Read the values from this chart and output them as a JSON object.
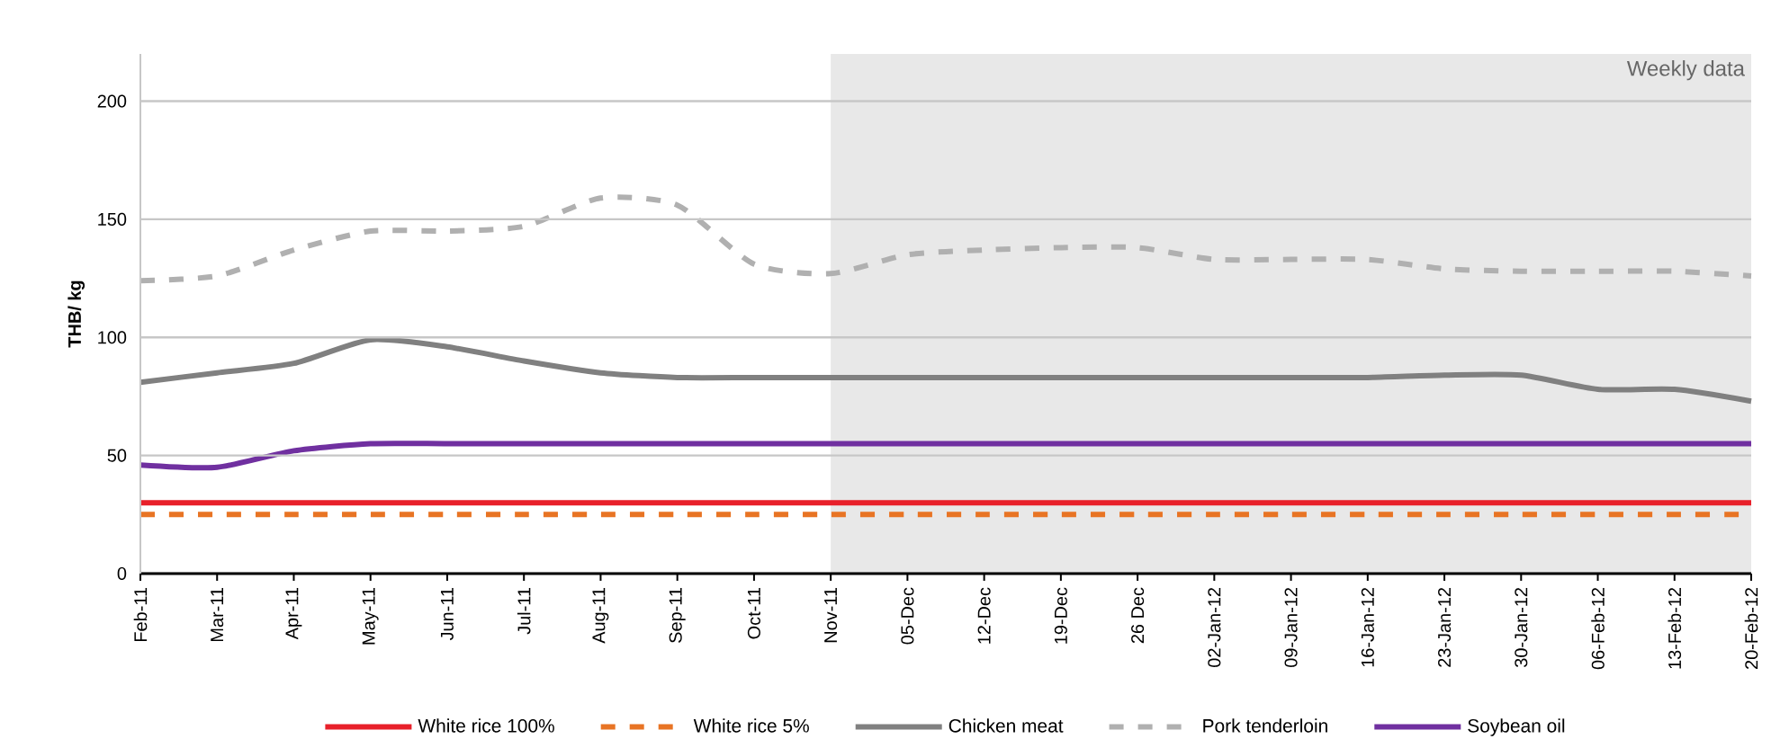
{
  "chart_data": {
    "type": "line",
    "ylabel": "THB/ kg",
    "categories": [
      "Feb-11",
      "Mar-11",
      "Apr-11",
      "May-11",
      "Jun-11",
      "Jul-11",
      "Aug-11",
      "Sep-11",
      "Oct-11",
      "Nov-11",
      "05-Dec",
      "12-Dec",
      "19-Dec",
      "26 Dec",
      "02-Jan-12",
      "09-Jan-12",
      "16-Jan-12",
      "23-Jan-12",
      "30-Jan-12",
      "06-Feb-12",
      "13-Feb-12",
      "20-Feb-12"
    ],
    "series": [
      {
        "name": "White rice 100%",
        "color": "#e8202a",
        "line_style": "solid",
        "values": [
          30,
          30,
          30,
          30,
          30,
          30,
          30,
          30,
          30,
          30,
          30,
          30,
          30,
          30,
          30,
          30,
          30,
          30,
          30,
          30,
          30,
          30
        ]
      },
      {
        "name": "White rice 5%",
        "color": "#e87424",
        "line_style": "dashed",
        "values": [
          25,
          25,
          25,
          25,
          25,
          25,
          25,
          25,
          25,
          25,
          25,
          25,
          25,
          25,
          25,
          25,
          25,
          25,
          25,
          25,
          25,
          25
        ]
      },
      {
        "name": "Chicken meat",
        "color": "#808080",
        "line_style": "solid",
        "values": [
          81,
          85,
          89,
          99,
          96,
          90,
          85,
          83,
          83,
          83,
          83,
          83,
          83,
          83,
          83,
          83,
          83,
          84,
          84,
          78,
          78,
          73
        ]
      },
      {
        "name": "Pork tenderloin",
        "color": "#b0b0b0",
        "line_style": "dashed",
        "values": [
          124,
          126,
          137,
          145,
          145,
          147,
          159,
          156,
          131,
          127,
          135,
          137,
          138,
          138,
          133,
          133,
          133,
          129,
          128,
          128,
          128,
          126
        ]
      },
      {
        "name": "Soybean oil",
        "color": "#7030a0",
        "line_style": "solid",
        "values": [
          46,
          45,
          52,
          55,
          55,
          55,
          55,
          55,
          55,
          55,
          55,
          55,
          55,
          55,
          55,
          55,
          55,
          55,
          55,
          55,
          55,
          55
        ]
      }
    ],
    "ylim": [
      0,
      220
    ],
    "yticks": [
      0,
      50,
      100,
      150,
      200
    ],
    "bands": [
      {
        "axis": "x",
        "from": "Nov-11",
        "to": "20-Feb-12",
        "label": "Weekly data",
        "color": "#e8e8e8"
      }
    ],
    "grid": "y",
    "legend": "bottom",
    "marker": "none"
  }
}
